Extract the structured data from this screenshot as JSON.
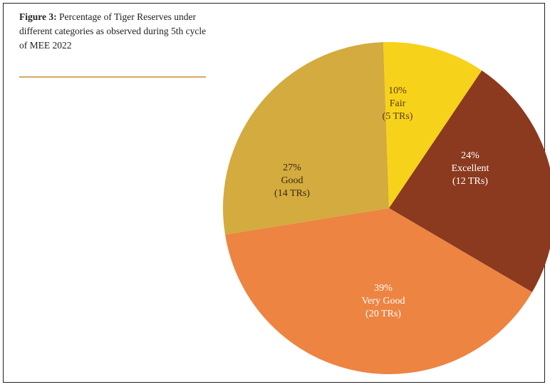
{
  "figure": {
    "number_label": "Figure 3:",
    "title": "Percentage of Tiger Reserves under different categories as observed during 5th cycle of MEE 2022"
  },
  "chart_data": {
    "type": "pie",
    "title": "Percentage of Tiger Reserves under different categories as observed during 5th cycle of MEE 2022",
    "slices": [
      {
        "category": "Fair",
        "percent": 10,
        "count": 5,
        "percent_label": "10%",
        "count_label": "(5 TRs)",
        "color": "#f7d21a",
        "text_color": "#5a3b10"
      },
      {
        "category": "Excellent",
        "percent": 24,
        "count": 12,
        "percent_label": "24%",
        "count_label": "(12 TRs)",
        "color": "#8b3a1f",
        "text_color": "#ffffff"
      },
      {
        "category": "Very Good",
        "percent": 39,
        "count": 20,
        "percent_label": "39%",
        "count_label": "(20 TRs)",
        "color": "#ed8442",
        "text_color": "#ffffff"
      },
      {
        "category": "Good",
        "percent": 27,
        "count": 14,
        "percent_label": "27%",
        "count_label": "(14 TRs)",
        "color": "#d3ab3e",
        "text_color": "#3a2a10"
      }
    ]
  }
}
